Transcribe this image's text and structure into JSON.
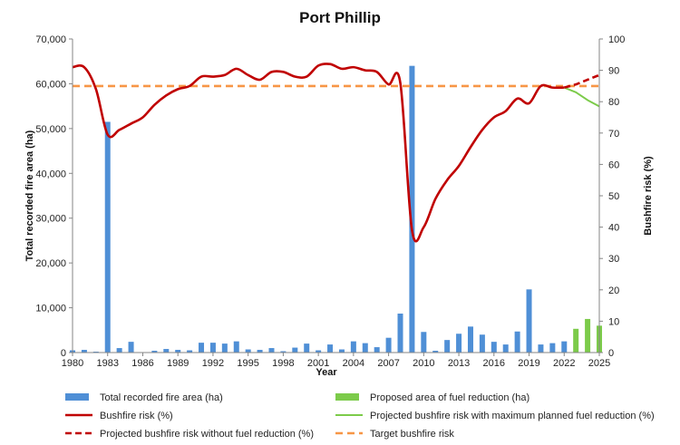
{
  "chart_data": {
    "type": "bar",
    "title": "Port Phillip",
    "xlabel": "Year",
    "ylabel": "Total recorded fire area (ha)",
    "y2label": "Bushfire risk (%)",
    "xlim": [
      1980,
      2025
    ],
    "ylim": [
      0,
      70000
    ],
    "y2lim": [
      0,
      100
    ],
    "x_ticks": [
      1980,
      1983,
      1986,
      1989,
      1992,
      1995,
      1998,
      2001,
      2004,
      2007,
      2010,
      2013,
      2016,
      2019,
      2022,
      2025
    ],
    "y_ticks": [
      0,
      10000,
      20000,
      30000,
      40000,
      50000,
      60000,
      70000
    ],
    "y_tick_labels": [
      "0",
      "10,000",
      "20,000",
      "30,000",
      "40,000",
      "50,000",
      "60,000",
      "70,000"
    ],
    "y2_ticks": [
      0,
      10,
      20,
      30,
      40,
      50,
      60,
      70,
      80,
      90,
      100
    ],
    "grid": false,
    "legend_position": "bottom",
    "colors": {
      "fire_area": "#4f8fd6",
      "fuel_reduction": "#7ccb4a",
      "risk": "#c00000",
      "max_fuel_reduction": "#7ccb4a",
      "without_fuel_reduction": "#c00000",
      "target": "#f79646"
    },
    "series": [
      {
        "name": "Total recorded fire area (ha)",
        "type": "bar",
        "axis": "left",
        "x": [
          1980,
          1981,
          1982,
          1983,
          1984,
          1985,
          1986,
          1987,
          1988,
          1989,
          1990,
          1991,
          1992,
          1993,
          1994,
          1995,
          1996,
          1997,
          1998,
          1999,
          2000,
          2001,
          2002,
          2003,
          2004,
          2005,
          2006,
          2007,
          2008,
          2009,
          2010,
          2011,
          2012,
          2013,
          2014,
          2015,
          2016,
          2017,
          2018,
          2019,
          2020,
          2021,
          2022
        ],
        "values": [
          500,
          600,
          200,
          51500,
          1000,
          2400,
          100,
          400,
          800,
          600,
          500,
          2200,
          2200,
          2000,
          2500,
          700,
          600,
          1000,
          300,
          1100,
          2000,
          500,
          1800,
          700,
          2500,
          2100,
          1200,
          3300,
          8700,
          64000,
          4600,
          400,
          2800,
          4200,
          5800,
          4000,
          2400,
          1800,
          4700,
          14100,
          1800,
          2100,
          2500
        ]
      },
      {
        "name": "Proposed area of fuel reduction (ha)",
        "type": "bar",
        "axis": "left",
        "x": [
          2023,
          2024,
          2025
        ],
        "values": [
          5300,
          7500,
          6000
        ]
      },
      {
        "name": "Bushfire risk (%)",
        "type": "line",
        "axis": "right",
        "x": [
          1980,
          1981,
          1982,
          1983,
          1984,
          1985,
          1986,
          1987,
          1988,
          1989,
          1990,
          1991,
          1992,
          1993,
          1994,
          1995,
          1996,
          1997,
          1998,
          1999,
          2000,
          2001,
          2002,
          2003,
          2004,
          2005,
          2006,
          2007,
          2008,
          2009,
          2010,
          2011,
          2012,
          2013,
          2014,
          2015,
          2016,
          2017,
          2018,
          2019,
          2020,
          2021,
          2022
        ],
        "values": [
          91,
          91,
          84,
          69.5,
          71,
          73,
          75,
          79,
          82,
          84,
          85,
          88,
          88,
          88.5,
          90.5,
          88.5,
          87,
          89.5,
          89.5,
          88,
          88,
          91.5,
          92,
          90.5,
          91,
          90,
          89.5,
          85.5,
          86,
          39,
          40,
          49,
          55,
          59.5,
          65.5,
          71,
          75,
          77,
          81,
          79.5,
          85,
          84.5,
          84.5
        ]
      },
      {
        "name": "Projected bushfire risk with maximum planned fuel reduction (%)",
        "type": "line",
        "axis": "right",
        "x": [
          2022,
          2023,
          2024,
          2025
        ],
        "values": [
          84.5,
          83,
          80.5,
          78.5
        ]
      },
      {
        "name": "Projected bushfire risk without fuel reduction (%)",
        "type": "line",
        "axis": "right",
        "dashed": true,
        "x": [
          2022,
          2023,
          2024,
          2025
        ],
        "values": [
          84.5,
          85.5,
          87,
          88.5
        ]
      },
      {
        "name": "Target bushfire risk",
        "type": "line",
        "axis": "right",
        "dashed": true,
        "x": [
          1980,
          2025
        ],
        "values": [
          85,
          85
        ]
      }
    ]
  }
}
